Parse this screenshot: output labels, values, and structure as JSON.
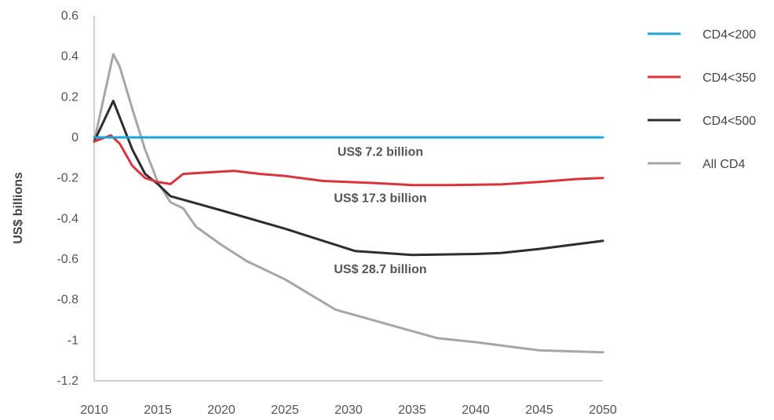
{
  "chart_data": {
    "type": "line",
    "ylabel": "US$ billions",
    "xlim": [
      2010,
      2050
    ],
    "ylim": [
      -1.2,
      0.6
    ],
    "x_ticks": [
      2010,
      2015,
      2020,
      2025,
      2030,
      2035,
      2040,
      2045,
      2050
    ],
    "y_ticks": [
      0.6,
      0.4,
      0.2,
      0,
      -0.2,
      -0.4,
      -0.6,
      -0.8,
      -1,
      -1.2
    ],
    "grid": false,
    "legend_position": "right",
    "series": [
      {
        "name": "CD4<200",
        "color": "#1ba4d8",
        "x": [
          2010,
          2050
        ],
        "y": [
          0,
          0
        ]
      },
      {
        "name": "CD4<350",
        "color": "#d9343e",
        "x": [
          2010,
          2011.3,
          2012,
          2013,
          2014,
          2015,
          2016,
          2017,
          2021,
          2023,
          2025,
          2028,
          2032,
          2035,
          2038,
          2042,
          2045,
          2048,
          2050
        ],
        "y": [
          -0.02,
          0.01,
          -0.03,
          -0.14,
          -0.2,
          -0.22,
          -0.23,
          -0.18,
          -0.165,
          -0.18,
          -0.19,
          -0.215,
          -0.225,
          -0.235,
          -0.235,
          -0.232,
          -0.22,
          -0.205,
          -0.2
        ]
      },
      {
        "name": "CD4<500",
        "color": "#2d2d2d",
        "x": [
          2010,
          2011.5,
          2012,
          2013,
          2014,
          2015,
          2016,
          2020,
          2025,
          2030.5,
          2035,
          2040,
          2042,
          2045,
          2050
        ],
        "y": [
          -0.02,
          0.18,
          0.1,
          -0.06,
          -0.18,
          -0.23,
          -0.29,
          -0.36,
          -0.45,
          -0.56,
          -0.58,
          -0.575,
          -0.57,
          -0.55,
          -0.51
        ]
      },
      {
        "name": "All CD4",
        "color": "#a6a6a6",
        "x": [
          2010,
          2011.5,
          2012,
          2013,
          2014,
          2015,
          2016,
          2017,
          2018,
          2020,
          2022,
          2025,
          2029,
          2033,
          2037,
          2040,
          2045,
          2050
        ],
        "y": [
          -0.02,
          0.41,
          0.35,
          0.14,
          -0.06,
          -0.22,
          -0.32,
          -0.35,
          -0.44,
          -0.53,
          -0.61,
          -0.7,
          -0.85,
          -0.92,
          -0.99,
          -1.01,
          -1.05,
          -1.06
        ]
      }
    ],
    "annotations": [
      {
        "text": "US$ 7.2 billion",
        "x": 2032.5,
        "y": -0.09
      },
      {
        "text": "US$ 17.3 billion",
        "x": 2032.5,
        "y": -0.32
      },
      {
        "text": "US$ 28.7 billion",
        "x": 2032.5,
        "y": -0.67
      }
    ]
  }
}
